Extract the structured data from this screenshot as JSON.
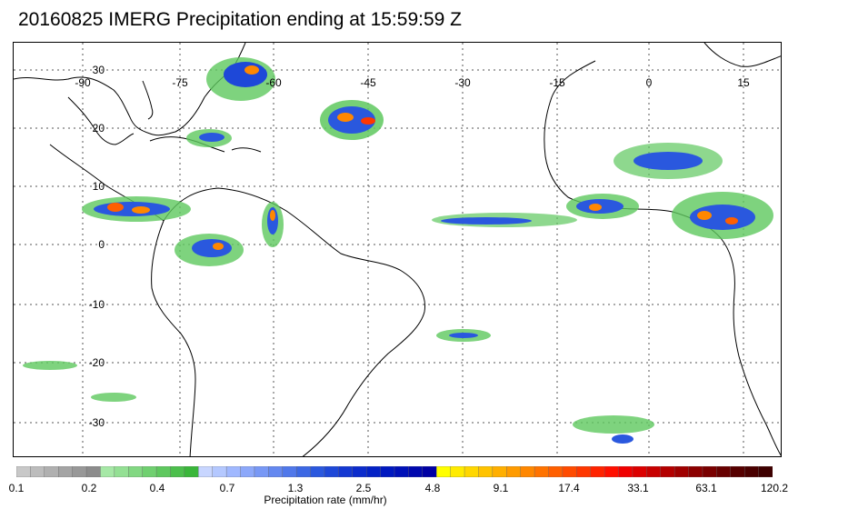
{
  "title": "20160825 IMERG Precipitation ending at 15:59:59 Z",
  "map": {
    "longitude_labels": [
      "-90",
      "-75",
      "-60",
      "-45",
      "-30",
      "-15",
      "0",
      "15"
    ],
    "latitude_labels": [
      "30",
      "20",
      "10",
      "0",
      "-10",
      "-20",
      "-30"
    ],
    "coastline_color": "#000000",
    "grid_color": "#555555"
  },
  "colorbar": {
    "label": "Precipitation rate (mm/hr)",
    "tick_labels": [
      "0.1",
      "0.2",
      "0.4",
      "0.7",
      "1.3",
      "2.5",
      "4.8",
      "9.1",
      "17.4",
      "33.1",
      "63.1",
      "120.2"
    ],
    "colors": [
      "#c8c8c8",
      "#bcbcbc",
      "#b0b0b0",
      "#a4a4a4",
      "#989898",
      "#8c8c8c",
      "#a6e8a6",
      "#94e094",
      "#82d882",
      "#70d070",
      "#5ec85e",
      "#4cbf4c",
      "#3ab63a",
      "#c8d6ff",
      "#b4c8ff",
      "#a0b8ff",
      "#8ca8fa",
      "#7898f5",
      "#6488f0",
      "#5078ea",
      "#3c68e4",
      "#2a58de",
      "#1e48d8",
      "#1438d2",
      "#0c2ccc",
      "#0422c6",
      "#0018c0",
      "#0010b8",
      "#0008ae",
      "#0000a4",
      "#ffff00",
      "#ffeb00",
      "#ffd700",
      "#ffc300",
      "#ffaf00",
      "#ff9b00",
      "#ff8700",
      "#ff7300",
      "#ff5f00",
      "#ff4b00",
      "#ff3700",
      "#ff2300",
      "#ff0f00",
      "#f00000",
      "#dc0000",
      "#c80000",
      "#b40000",
      "#a00000",
      "#8c0000",
      "#7a0000",
      "#680000",
      "#560000",
      "#4a0000",
      "#3e0000"
    ]
  }
}
